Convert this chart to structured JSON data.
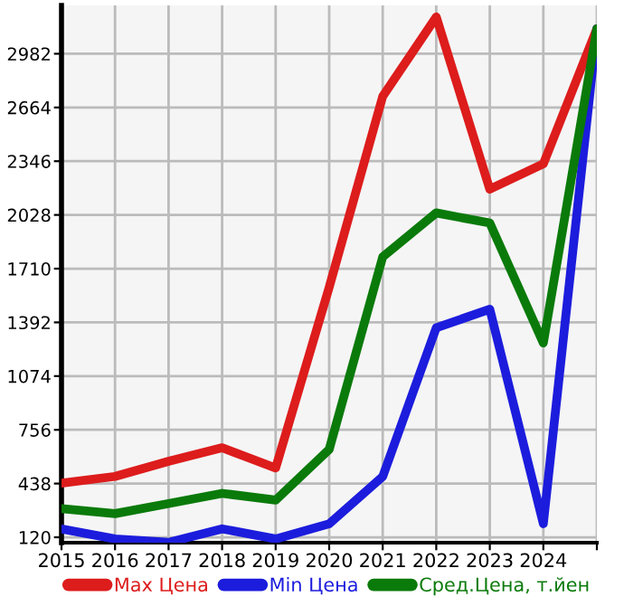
{
  "chart_data": {
    "type": "line",
    "categories": [
      "2015",
      "2016",
      "2017",
      "2018",
      "2019",
      "2020",
      "2021",
      "2022",
      "2023",
      "2024",
      null
    ],
    "series": [
      {
        "name": "Max Цена",
        "color": "#dd1c1c",
        "values": [
          440,
          480,
          570,
          650,
          530,
          1600,
          2730,
          3200,
          2180,
          2330,
          3130
        ]
      },
      {
        "name": "Min Цена",
        "color": "#1c1cdd",
        "values": [
          170,
          110,
          90,
          170,
          110,
          200,
          480,
          1360,
          1470,
          200,
          3130
        ]
      },
      {
        "name": "Сред.Цена, т.йен",
        "color": "#0a7a0a",
        "values": [
          290,
          260,
          320,
          380,
          340,
          640,
          1780,
          2040,
          1980,
          1270,
          3130
        ]
      }
    ],
    "ylim": [
      88,
      3268
    ],
    "yticks": [
      120,
      438,
      756,
      1074,
      1392,
      1710,
      2028,
      2346,
      2664,
      2982
    ],
    "grid": true,
    "legend": "bottom",
    "marker": "none",
    "line_style": "solid"
  }
}
